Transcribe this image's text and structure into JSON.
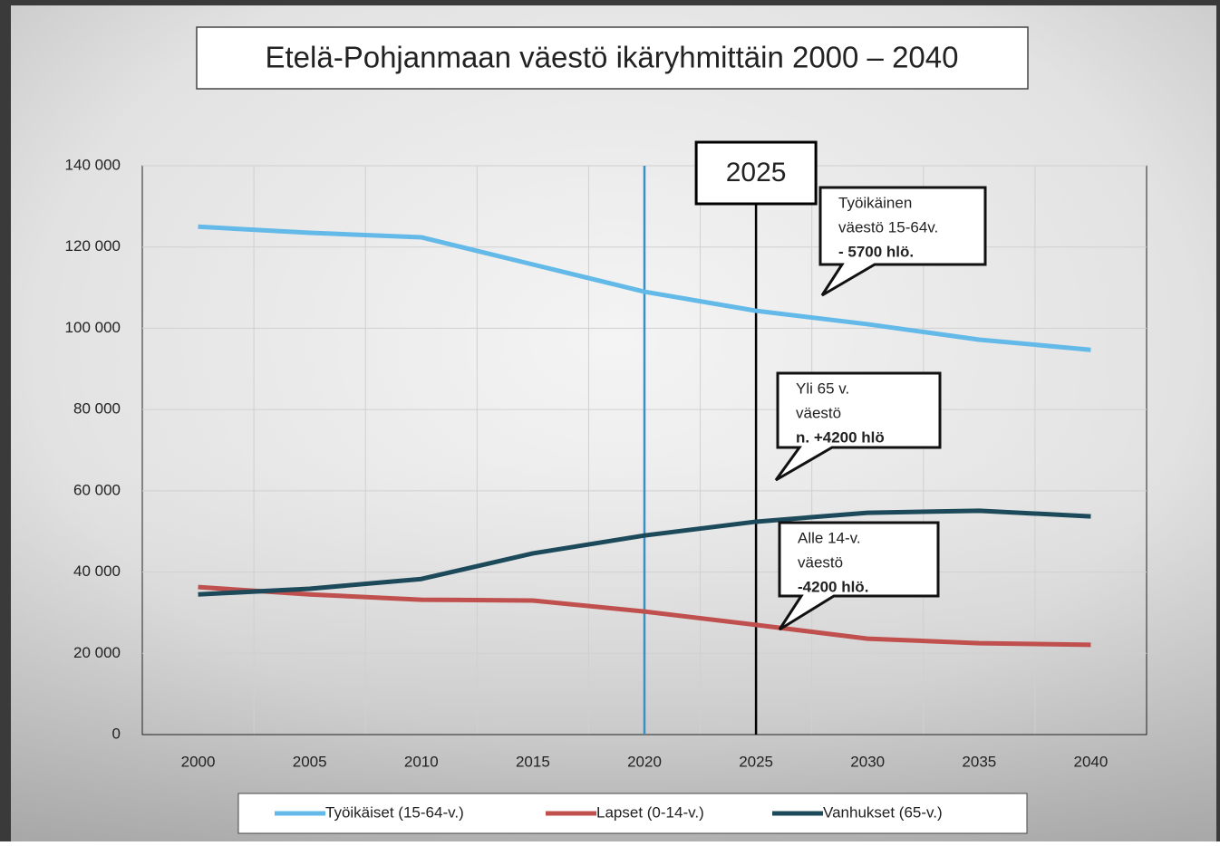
{
  "chart_data": {
    "type": "line",
    "title": "Etelä-Pohjanmaan väestö ikäryhmittäin 2000 – 2040",
    "categories": [
      "2000",
      "2005",
      "2010",
      "2015",
      "2020",
      "2025",
      "2030",
      "2035",
      "2040"
    ],
    "series": [
      {
        "name": "Työikäiset (15-64-v.)",
        "color": "#63b9e8",
        "values": [
          125000,
          123500,
          122400,
          115700,
          109000,
          104300,
          101000,
          97200,
          94700
        ]
      },
      {
        "name": "Lapset (0-14-v.)",
        "color": "#c0504d",
        "values": [
          36300,
          34500,
          33200,
          33000,
          30300,
          27000,
          23600,
          22500,
          22100
        ]
      },
      {
        "name": "Vanhukset (65-v.)",
        "color": "#1d4a5a",
        "values": [
          34500,
          35900,
          38300,
          44600,
          49000,
          52400,
          54600,
          55100,
          53700
        ]
      }
    ],
    "ylim": [
      0,
      140000
    ],
    "yticks": [
      0,
      {
        "value": 20000,
        "label": "20 000"
      },
      {
        "value": 40000,
        "label": "40 000"
      },
      {
        "value": 60000,
        "label": "60 000"
      },
      {
        "value": 80000,
        "label": "80 000"
      },
      {
        "value": 100000,
        "label": "100 000"
      },
      {
        "value": 120000,
        "label": "120 000"
      },
      {
        "value": 140000,
        "label": "140 000"
      }
    ],
    "grid": true,
    "legend": "bottom",
    "marker_lines": [
      {
        "at": "2020",
        "color": "#3a8fc4"
      },
      {
        "at": "2025",
        "color": "#000000",
        "label": "2025"
      }
    ],
    "annotations": [
      {
        "lines": [
          "Työikäinen",
          "väestö 15-64v.",
          "- 5700 hlö."
        ]
      },
      {
        "lines": [
          "Yli 65 v.",
          "väestö",
          "n. +4200 hlö"
        ]
      },
      {
        "lines": [
          "Alle 14-v.",
          "väestö",
          "-4200 hlö."
        ]
      }
    ]
  }
}
